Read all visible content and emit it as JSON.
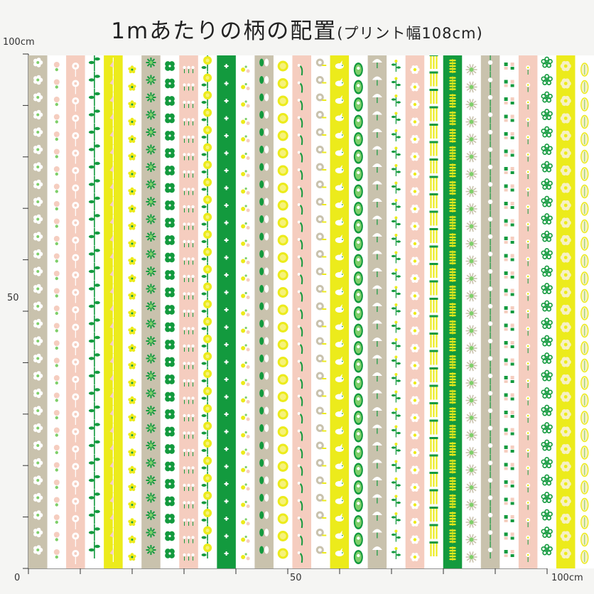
{
  "title": {
    "main": "1mあたりの柄の配置",
    "sub": "(プリント幅108cm)"
  },
  "ruler": {
    "left_top_label": "100cm",
    "left_mid_label": "50",
    "bottom_start_label": "0",
    "bottom_mid_label": "50",
    "bottom_end_label": "100cm"
  },
  "colors": {
    "background": "#f5f5f3",
    "white": "#ffffff",
    "green": "#139a3e",
    "light_green": "#7fcf6a",
    "yellow": "#eceb1b",
    "pale_yellow": "#f6f27a",
    "pink": "#f5cdbf",
    "beige": "#c9c2ad",
    "cream": "#f7f1c4"
  },
  "stripes": [
    {
      "bg": "beige",
      "motif": "flower-cluster-icon"
    },
    {
      "bg": "white",
      "motif": "pink-flower-icon"
    },
    {
      "bg": "pink",
      "motif": "tall-flower-icon"
    },
    {
      "bg": "white",
      "motif": "green-vine-icon"
    },
    {
      "bg": "yellow",
      "motif": "hanging-bell-icon"
    },
    {
      "bg": "white",
      "motif": "yellow-star-flower-icon"
    },
    {
      "bg": "beige",
      "motif": "green-burst-icon"
    },
    {
      "bg": "white",
      "motif": "clover-icon"
    },
    {
      "bg": "pink",
      "motif": "sprout-row-icon"
    },
    {
      "bg": "white",
      "motif": "rose-vine-icon"
    },
    {
      "bg": "green",
      "motif": "cross-border-icon"
    },
    {
      "bg": "white",
      "motif": "small-bloom-icon"
    },
    {
      "bg": "beige",
      "motif": "leaf-pair-icon"
    },
    {
      "bg": "white",
      "motif": "yellow-dot-icon"
    },
    {
      "bg": "pink",
      "motif": "stem-curl-icon"
    },
    {
      "bg": "white",
      "motif": "snail-icon"
    },
    {
      "bg": "yellow",
      "motif": "bird-icon"
    },
    {
      "bg": "white",
      "motif": "oval-badge-icon"
    },
    {
      "bg": "beige",
      "motif": "umbrella-flower-icon"
    },
    {
      "bg": "white",
      "motif": "leaf-sprig-icon"
    },
    {
      "bg": "pink",
      "motif": "daisy-icon"
    },
    {
      "bg": "white",
      "motif": "weeping-plant-icon"
    },
    {
      "bg": "green",
      "motif": "wheat-icon"
    },
    {
      "bg": "white",
      "motif": "sunburst-icon"
    },
    {
      "bg": "beige",
      "motif": "vine-dot-icon"
    },
    {
      "bg": "white",
      "motif": "flower-grid-icon"
    },
    {
      "bg": "pink",
      "motif": "tiny-daisy-icon"
    },
    {
      "bg": "white",
      "motif": "flower-ring-icon"
    },
    {
      "bg": "yellow",
      "motif": "big-bloom-icon"
    },
    {
      "bg": "white",
      "motif": "oval-leaf-icon"
    }
  ]
}
